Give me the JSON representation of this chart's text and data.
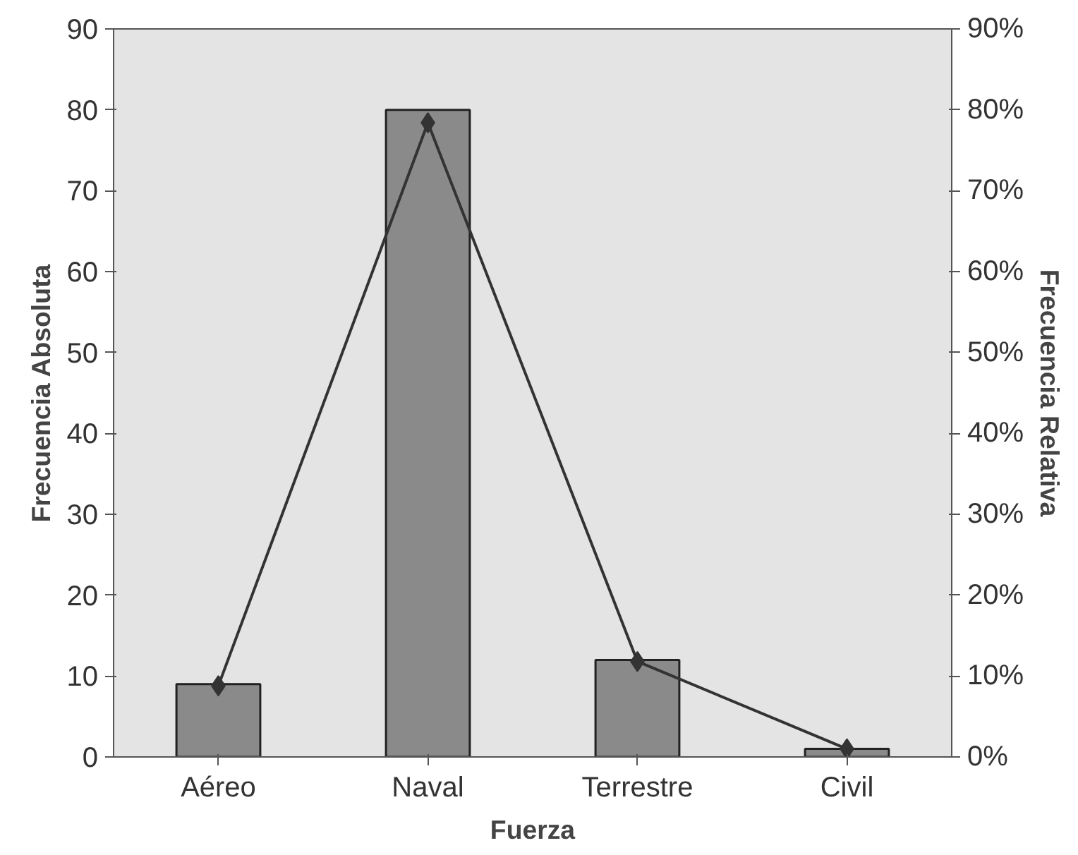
{
  "chart_data": {
    "type": "bar",
    "xlabel": "Fuerza",
    "ylabel": "Frecuencia Absoluta",
    "y2label": "Frecuencia Relativa",
    "categories": [
      "Aéreo",
      "Naval",
      "Terrestre",
      "Civil"
    ],
    "series": [
      {
        "color": "#8a8a8a",
        "values": [
          9,
          80,
          12,
          1
        ]
      },
      {
        "type": "line",
        "axis": "y2",
        "color": "#333333",
        "marker": "diamond",
        "values": [
          0.088,
          0.784,
          0.118,
          0.01
        ]
      }
    ],
    "ylim": [
      0,
      90
    ],
    "yticks": [
      0,
      10,
      20,
      30,
      40,
      50,
      60,
      70,
      80,
      90
    ],
    "y2lim": [
      0,
      0.9
    ],
    "y2ticks": [
      {
        "value": 0,
        "label": "0%"
      },
      {
        "value": 0.1,
        "label": "10%"
      },
      {
        "value": 0.2,
        "label": "20%"
      },
      {
        "value": 0.3,
        "label": "30%"
      },
      {
        "value": 0.4,
        "label": "40%"
      },
      {
        "value": 0.5,
        "label": "50%"
      },
      {
        "value": 0.6,
        "label": "60%"
      },
      {
        "value": 0.7,
        "label": "70%"
      },
      {
        "value": 0.8,
        "label": "80%"
      },
      {
        "value": 0.9,
        "label": "90%"
      }
    ],
    "grid": false
  }
}
